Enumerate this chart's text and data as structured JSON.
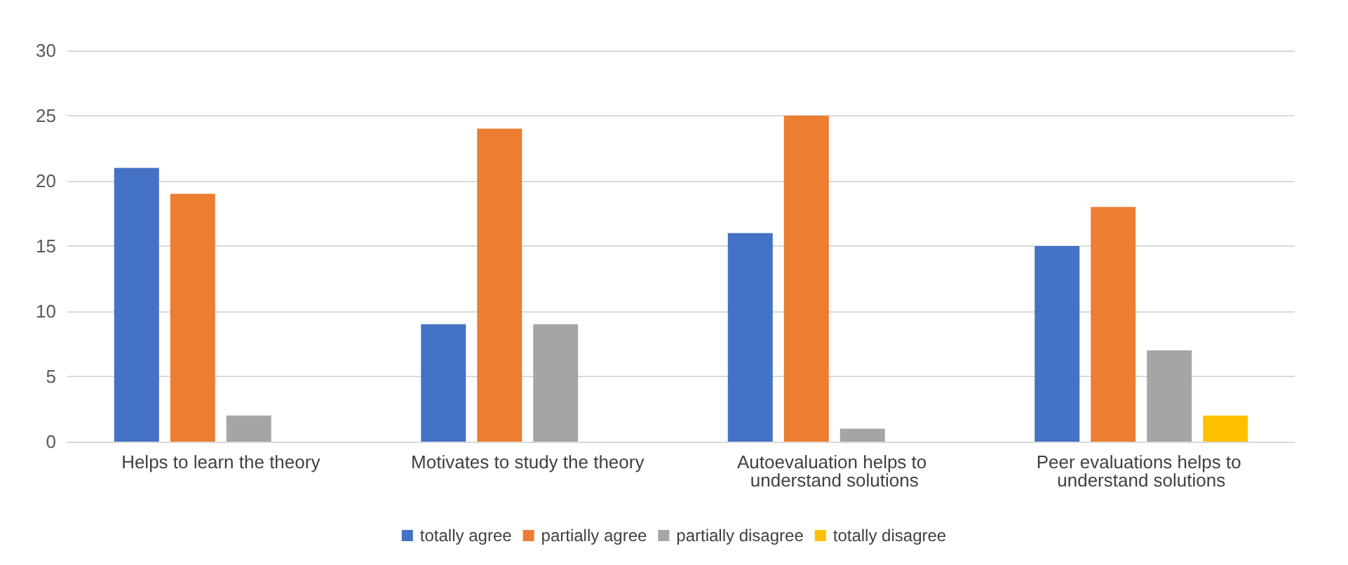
{
  "chart_data": {
    "type": "bar",
    "categories": [
      "Helps to learn the theory",
      "Motivates to study the theory",
      "Autoevaluation helps to understand solutions",
      "Peer evaluations helps to understand solutions"
    ],
    "series": [
      {
        "name": "totally agree",
        "color": "#4472c4",
        "values": [
          21,
          9,
          16,
          15
        ]
      },
      {
        "name": "partially agree",
        "color": "#ed7d31",
        "values": [
          19,
          24,
          25,
          18
        ]
      },
      {
        "name": "partially disagree",
        "color": "#a5a5a5",
        "values": [
          2,
          9,
          1,
          7
        ]
      },
      {
        "name": "totally disagree",
        "color": "#ffc000",
        "values": [
          0,
          0,
          0,
          2
        ]
      }
    ],
    "ylim": [
      0,
      30
    ],
    "yticks": [
      0,
      5,
      10,
      15,
      20,
      25,
      30
    ],
    "grid": "y",
    "legend": "bottom"
  }
}
